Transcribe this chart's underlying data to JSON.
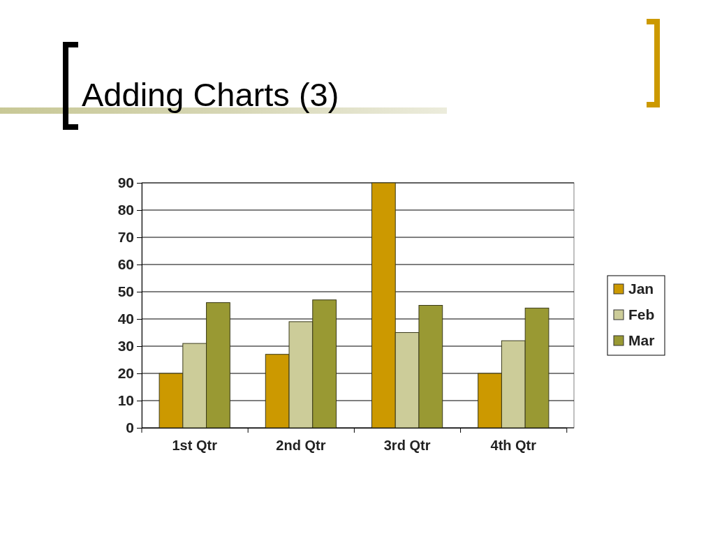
{
  "chart_data": {
    "type": "bar",
    "title": "Adding Charts (3)",
    "categories": [
      "1st Qtr",
      "2nd Qtr",
      "3rd Qtr",
      "4th Qtr"
    ],
    "series": [
      {
        "name": "Jan",
        "color": "#cc9900",
        "values": [
          20,
          27,
          90,
          20
        ]
      },
      {
        "name": "Feb",
        "color": "#cccc99",
        "values": [
          31,
          39,
          35,
          32
        ]
      },
      {
        "name": "Mar",
        "color": "#999933",
        "values": [
          46,
          47,
          45,
          44
        ]
      }
    ],
    "ylim": [
      0,
      90
    ],
    "yticks": [
      0,
      10,
      20,
      30,
      40,
      50,
      60,
      70,
      80,
      90
    ],
    "grid": "y",
    "legend": "right"
  }
}
